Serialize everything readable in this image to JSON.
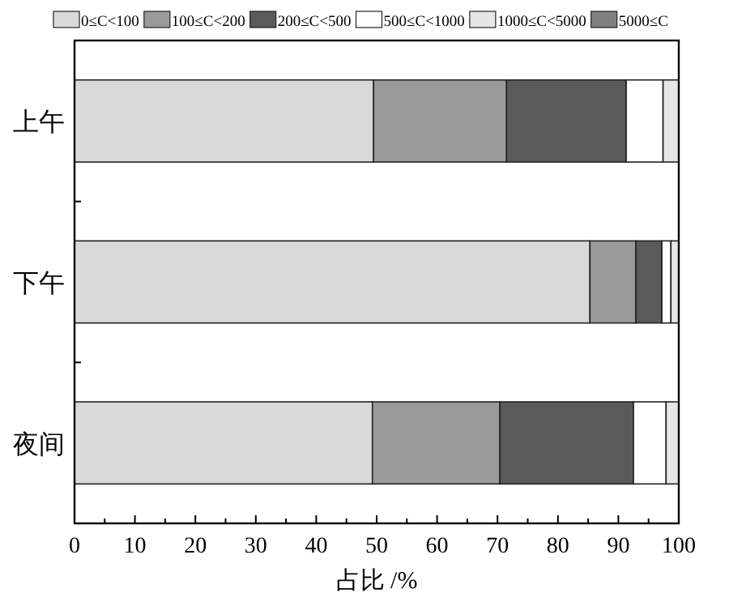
{
  "chart_data": {
    "type": "bar",
    "orientation": "horizontal",
    "stacked": true,
    "legend": "top",
    "xlabel": "占比 /%",
    "categories": [
      "上午",
      "下午",
      "夜间"
    ],
    "series": [
      {
        "name": "0≤C<100",
        "color": "#d9d9d9",
        "values": [
          49.5,
          85.3,
          49.3
        ]
      },
      {
        "name": "100≤C<200",
        "color": "#9a9a9a",
        "values": [
          22.0,
          7.6,
          21.1
        ]
      },
      {
        "name": "200≤C<500",
        "color": "#5a5a5a",
        "values": [
          19.8,
          4.3,
          22.1
        ]
      },
      {
        "name": "500≤C<1000",
        "color": "#ffffff",
        "values": [
          6.1,
          1.5,
          5.4
        ]
      },
      {
        "name": "1000≤C<5000",
        "color": "#e6e6e6",
        "values": [
          2.6,
          1.3,
          2.1
        ]
      },
      {
        "name": "5000≤C",
        "color": "#808080",
        "values": [
          0,
          0,
          0
        ]
      }
    ],
    "xlim": [
      0,
      100
    ],
    "xticks": [
      0,
      {
        "value": 5,
        "label": null
      },
      10,
      {
        "value": 15,
        "label": null
      },
      20,
      {
        "value": 25,
        "label": null
      },
      30,
      {
        "value": 35,
        "label": null
      },
      40,
      {
        "value": 45,
        "label": null
      },
      50,
      {
        "value": 55,
        "label": null
      },
      60,
      {
        "value": 65,
        "label": null
      },
      70,
      {
        "value": 75,
        "label": null
      },
      80,
      {
        "value": 85,
        "label": null
      },
      90,
      {
        "value": 95,
        "label": null
      },
      100
    ]
  }
}
